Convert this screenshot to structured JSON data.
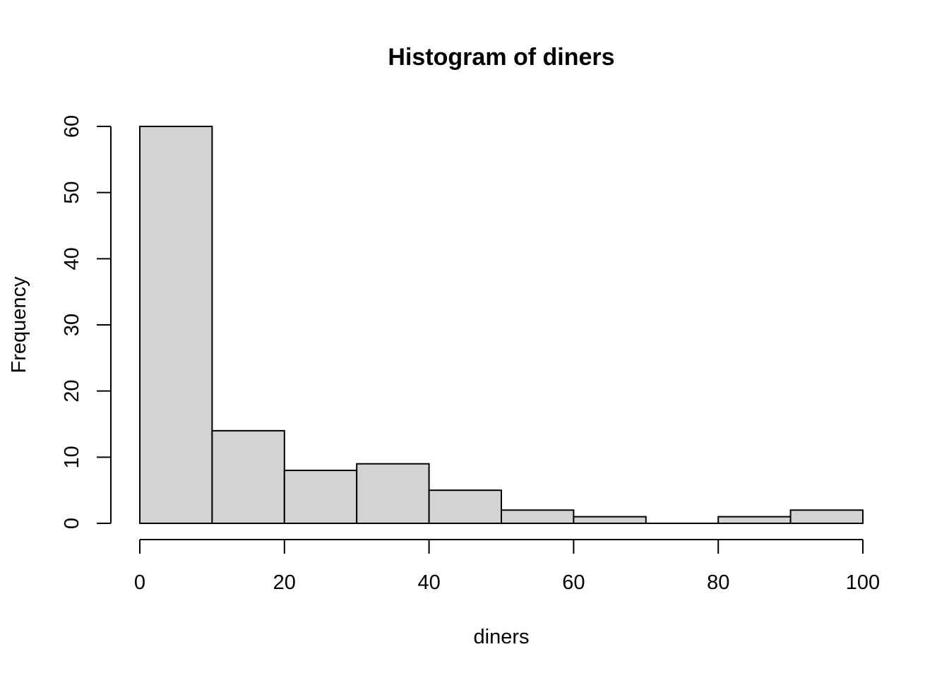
{
  "chart_data": {
    "type": "bar",
    "title": "Histogram of diners",
    "xlabel": "diners",
    "ylabel": "Frequency",
    "bins": [
      {
        "start": 0,
        "end": 10,
        "count": 60
      },
      {
        "start": 10,
        "end": 20,
        "count": 14
      },
      {
        "start": 20,
        "end": 30,
        "count": 8
      },
      {
        "start": 30,
        "end": 40,
        "count": 9
      },
      {
        "start": 40,
        "end": 50,
        "count": 5
      },
      {
        "start": 50,
        "end": 60,
        "count": 2
      },
      {
        "start": 60,
        "end": 70,
        "count": 1
      },
      {
        "start": 70,
        "end": 80,
        "count": 0
      },
      {
        "start": 80,
        "end": 90,
        "count": 1
      },
      {
        "start": 90,
        "end": 100,
        "count": 2
      }
    ],
    "xlim": [
      0,
      100
    ],
    "ylim": [
      0,
      60
    ],
    "xticks": [
      0,
      20,
      40,
      60,
      80,
      100
    ],
    "yticks": [
      0,
      10,
      20,
      30,
      40,
      50,
      60
    ],
    "bar_fill": "#d3d3d3",
    "bar_stroke": "#000000",
    "grid": false,
    "legend": "none"
  }
}
